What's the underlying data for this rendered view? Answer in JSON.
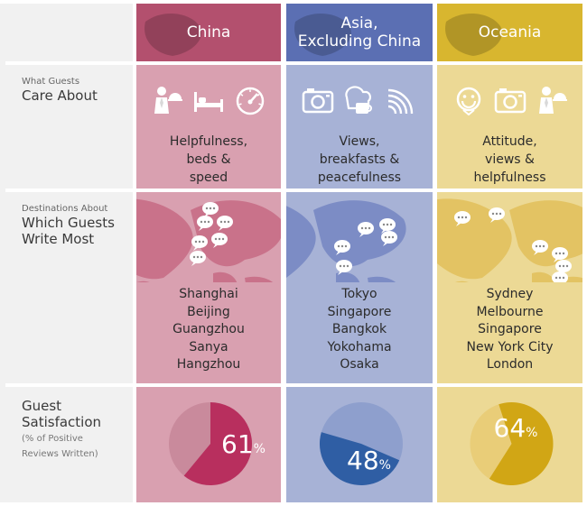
{
  "row_labels": {
    "care": {
      "small": "What Guests",
      "big": "Care About"
    },
    "destinations": {
      "small": "Destinations About",
      "big_line1": "Which Guests",
      "big_line2": "Write Most"
    },
    "satisfaction": {
      "big_line1": "Guest",
      "big_line2": "Satisfaction",
      "note_line1": "(% of Positive",
      "note_line2": "Reviews Written)"
    }
  },
  "regions": [
    {
      "name": "China",
      "colors": {
        "header": "#b3506e",
        "light": "#d9a0b0",
        "map": "#c9728a",
        "pie_main": "#b82f5e",
        "pie_rest": "#c98a9c"
      },
      "icons": [
        "bellhop-icon",
        "bed-icon",
        "speedometer-icon"
      ],
      "care": "Helpfulness,\nbeds &\nspeed",
      "cities": [
        "Shanghai",
        "Beijing",
        "Guangzhou",
        "Sanya",
        "Hangzhou"
      ],
      "satisfaction": 61,
      "pct_value": "61",
      "pct_sign": "%"
    },
    {
      "name": "Asia,\nExcluding China",
      "colors": {
        "header": "#5b6fb3",
        "light": "#a7b2d6",
        "map": "#7c8cc5",
        "pie_main": "#2f5ea4",
        "pie_rest": "#8e9fcd"
      },
      "icons": [
        "camera-icon",
        "bread-icon",
        "waves-icon"
      ],
      "care": "Views,\nbreakfasts &\npeacefulness",
      "cities": [
        "Tokyo",
        "Singapore",
        "Bangkok",
        "Yokohama",
        "Osaka"
      ],
      "satisfaction": 48,
      "pct_value": "48",
      "pct_sign": "%"
    },
    {
      "name": "Oceania",
      "colors": {
        "header": "#d8b62f",
        "light": "#ecd995",
        "map": "#e3c363",
        "pie_main": "#d1a615",
        "pie_rest": "#e9cd78"
      },
      "icons": [
        "smiley-icon",
        "camera-icon",
        "bellhop-icon"
      ],
      "care": "Attitude,\nviews &\nhelpfulness",
      "cities": [
        "Sydney",
        "Melbourne",
        "Singapore",
        "New York City",
        "London"
      ],
      "satisfaction": 64,
      "pct_value": "64",
      "pct_sign": "%"
    }
  ]
}
